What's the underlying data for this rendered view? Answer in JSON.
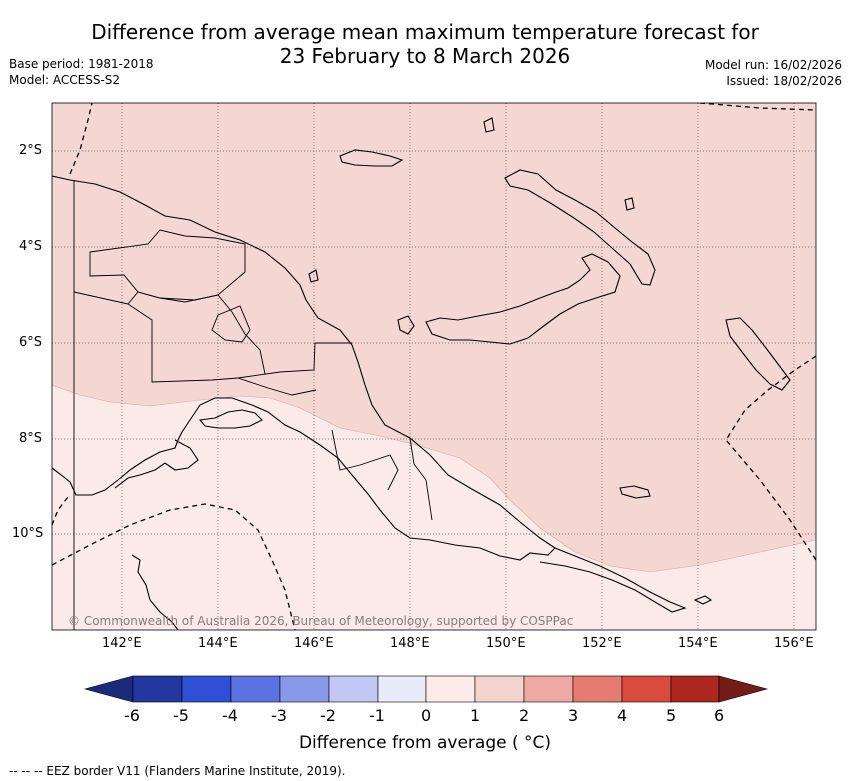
{
  "header": {
    "title_line1": "Difference from average mean maximum temperature forecast for",
    "title_line2": "23 February to 8 March 2026",
    "base_period": "Base period: 1981-2018",
    "model": "Model: ACCESS-S2",
    "model_run": "Model run: 16/02/2026",
    "issued": "Issued: 18/02/2026"
  },
  "map": {
    "region": "Papua New Guinea",
    "lon_range": [
      140.6,
      156.5
    ],
    "lat_range": [
      -12.0,
      -1.0
    ],
    "lat_ticks": [
      "2°S",
      "4°S",
      "6°S",
      "8°S",
      "10°S"
    ],
    "lon_ticks": [
      "142°E",
      "144°E",
      "146°E",
      "148°E",
      "150°E",
      "152°E",
      "154°E",
      "156°E"
    ],
    "anomaly_zones": [
      {
        "range": "1 to 2",
        "color": "#f4d6d3",
        "area": "north"
      },
      {
        "range": "0 to 1",
        "color": "#fbeae8",
        "area": "south"
      }
    ],
    "copyright": "© Commonwealth of Australia 2026, Bureau of Meteorology, supported by COSPPac"
  },
  "colorbar": {
    "labels": [
      "-6",
      "-5",
      "-4",
      "-3",
      "-2",
      "-1",
      "0",
      "1",
      "2",
      "3",
      "4",
      "5",
      "6"
    ],
    "colors": [
      "#23389e",
      "#2f4fd6",
      "#5a72e2",
      "#8899e9",
      "#c2c8f1",
      "#e8ecf8",
      "#fcebe8",
      "#f4d3cf",
      "#eea9a3",
      "#e57b73",
      "#d94a3f",
      "#ad2620"
    ],
    "under_color": "#1b2a7a",
    "over_color": "#731c18",
    "title": "Difference from average ( °C)"
  },
  "footer": {
    "eez_note": "--  --  -- EEZ border V11 (Flanders Marine Institute, 2019)."
  }
}
